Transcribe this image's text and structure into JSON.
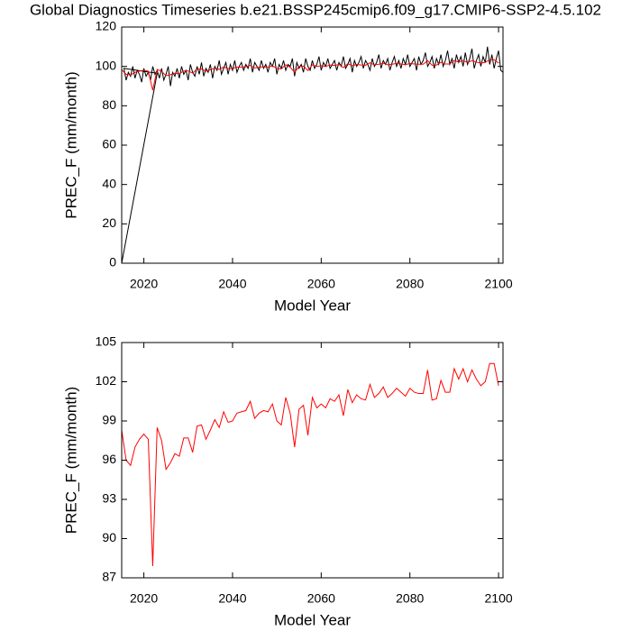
{
  "chart_data": [
    {
      "type": "line",
      "title": "Global Diagnostics Timeseries b.e21.BSSP245cmip6.f09_g17.CMIP6-SSP2-4.5.102",
      "xlabel": "Model Year",
      "ylabel": "PREC_F (mm/month)",
      "xlim": [
        2015,
        2101
      ],
      "ylim": [
        0,
        120
      ],
      "xticks": [
        2020,
        2040,
        2060,
        2080,
        2100
      ],
      "yticks": [
        0,
        20,
        40,
        60,
        80,
        100,
        120
      ],
      "series": [
        {
          "color": "#000000",
          "x": [
            2015,
            2023,
            2015.5,
            2016,
            2016.5,
            2017,
            2017.5,
            2018,
            2018.5,
            2019,
            2019.5,
            2020,
            2020.5,
            2021,
            2021.5,
            2022,
            2022.5,
            2023,
            2023.5,
            2024,
            2024.5,
            2025,
            2025.5,
            2026,
            2026.5,
            2027,
            2027.5,
            2028,
            2028.5,
            2029,
            2029.5,
            2030,
            2030.5,
            2031,
            2031.5,
            2032,
            2032.5,
            2033,
            2033.5,
            2034,
            2034.5,
            2035,
            2035.5,
            2036,
            2036.5,
            2037,
            2037.5,
            2038,
            2038.5,
            2039,
            2039.5,
            2040,
            2040.5,
            2041,
            2041.5,
            2042,
            2042.5,
            2043,
            2043.5,
            2044,
            2044.5,
            2045,
            2045.5,
            2046,
            2046.5,
            2047,
            2047.5,
            2048,
            2048.5,
            2049,
            2049.5,
            2050,
            2050.5,
            2051,
            2051.5,
            2052,
            2052.5,
            2053,
            2053.5,
            2054,
            2054.5,
            2055,
            2055.5,
            2056,
            2056.5,
            2057,
            2057.5,
            2058,
            2058.5,
            2059,
            2059.5,
            2060,
            2060.5,
            2061,
            2061.5,
            2062,
            2062.5,
            2063,
            2063.5,
            2064,
            2064.5,
            2065,
            2065.5,
            2066,
            2066.5,
            2067,
            2067.5,
            2068,
            2068.5,
            2069,
            2069.5,
            2070,
            2070.5,
            2071,
            2071.5,
            2072,
            2072.5,
            2073,
            2073.5,
            2074,
            2074.5,
            2075,
            2075.5,
            2076,
            2076.5,
            2077,
            2077.5,
            2078,
            2078.5,
            2079,
            2079.5,
            2080,
            2080.5,
            2081,
            2081.5,
            2082,
            2082.5,
            2083,
            2083.5,
            2084,
            2084.5,
            2085,
            2085.5,
            2086,
            2086.5,
            2087,
            2087.5,
            2088,
            2088.5,
            2089,
            2089.5,
            2090,
            2090.5,
            2091,
            2091.5,
            2092,
            2092.5,
            2093,
            2093.5,
            2094,
            2094.5,
            2095,
            2095.5,
            2096,
            2096.5,
            2097,
            2097.5,
            2098,
            2098.5,
            2099,
            2099.5,
            2100,
            2100.5,
            2101
          ],
          "values": [
            0,
            96.5,
            99,
            93,
            97,
            95,
            100,
            94,
            98,
            96,
            92,
            99,
            95,
            97,
            93,
            100,
            96,
            98,
            94,
            99,
            93,
            96,
            100,
            90,
            97,
            95,
            99,
            94,
            100,
            96,
            98,
            93,
            101,
            97,
            95,
            100,
            96,
            102,
            95,
            99,
            97,
            101,
            94,
            100,
            98,
            103,
            96,
            99,
            102,
            96,
            101,
            98,
            103,
            97,
            100,
            102,
            98,
            101,
            99,
            104,
            97,
            102,
            100,
            98,
            103,
            99,
            101,
            97,
            102,
            100,
            104,
            96,
            101,
            99,
            103,
            98,
            101,
            100,
            104,
            95,
            102,
            99,
            101,
            97,
            104,
            100,
            98,
            103,
            99,
            101,
            105,
            98,
            102,
            100,
            104,
            99,
            101,
            103,
            98,
            102,
            100,
            105,
            99,
            101,
            104,
            97,
            103,
            100,
            102,
            105,
            99,
            103,
            101,
            98,
            104,
            100,
            102,
            106,
            99,
            103,
            101,
            104,
            98,
            102,
            105,
            100,
            103,
            99,
            104,
            101,
            106,
            100,
            102,
            104,
            98,
            105,
            101,
            103,
            107,
            100,
            102,
            105,
            99,
            104,
            101,
            106,
            100,
            103,
            108,
            101,
            104,
            99,
            106,
            102,
            105,
            100,
            107,
            101,
            104,
            109,
            99,
            103,
            106,
            100,
            105,
            102,
            110,
            101,
            106,
            99,
            104,
            108,
            98,
            97
          ]
        },
        {
          "color": "#ff0000",
          "x": [
            2015,
            2016,
            2017,
            2018,
            2019,
            2020,
            2021,
            2022,
            2023,
            2024,
            2025,
            2026,
            2027,
            2028,
            2029,
            2030,
            2031,
            2032,
            2033,
            2034,
            2035,
            2036,
            2037,
            2038,
            2039,
            2040,
            2041,
            2042,
            2043,
            2044,
            2045,
            2046,
            2047,
            2048,
            2049,
            2050,
            2051,
            2052,
            2053,
            2054,
            2055,
            2056,
            2057,
            2058,
            2059,
            2060,
            2061,
            2062,
            2063,
            2064,
            2065,
            2066,
            2067,
            2068,
            2069,
            2070,
            2071,
            2072,
            2073,
            2074,
            2075,
            2076,
            2077,
            2078,
            2079,
            2080,
            2081,
            2082,
            2083,
            2084,
            2085,
            2086,
            2087,
            2088,
            2089,
            2090,
            2091,
            2092,
            2093,
            2094,
            2095,
            2096,
            2097,
            2098,
            2099,
            2100
          ],
          "values": [
            98.3,
            96.0,
            95.6,
            97.0,
            97.6,
            98.0,
            97.6,
            87.9,
            98.5,
            97.5,
            95.3,
            95.8,
            96.5,
            96.3,
            97.7,
            97.7,
            96.6,
            98.6,
            98.7,
            97.6,
            98.3,
            99.1,
            98.5,
            99.7,
            98.9,
            99.0,
            99.6,
            99.7,
            99.8,
            100.5,
            99.2,
            99.6,
            99.8,
            99.7,
            100.3,
            99.0,
            98.7,
            100.8,
            99.6,
            97.0,
            99.9,
            100.2,
            97.9,
            100.8,
            100.0,
            100.3,
            100.0,
            100.7,
            100.5,
            101.0,
            99.4,
            101.4,
            100.4,
            101.0,
            100.7,
            100.6,
            101.8,
            100.8,
            101.1,
            101.6,
            100.8,
            101.1,
            101.5,
            101.2,
            100.9,
            101.5,
            101.2,
            101.1,
            101.1,
            102.9,
            100.6,
            100.7,
            102.1,
            101.2,
            101.2,
            103.0,
            102.2,
            103.0,
            102.0,
            102.9,
            102.2,
            101.7,
            102.0,
            103.4,
            103.4,
            101.7
          ]
        }
      ]
    },
    {
      "type": "line",
      "xlabel": "Model Year",
      "ylabel": "PREC_F (mm/month)",
      "xlim": [
        2015,
        2101
      ],
      "ylim": [
        87,
        105
      ],
      "xticks": [
        2020,
        2040,
        2060,
        2080,
        2100
      ],
      "yticks": [
        87,
        90,
        93,
        96,
        99,
        102,
        105
      ],
      "series": [
        {
          "color": "#ff0000",
          "x": [
            2015,
            2016,
            2017,
            2018,
            2019,
            2020,
            2021,
            2022,
            2023,
            2024,
            2025,
            2026,
            2027,
            2028,
            2029,
            2030,
            2031,
            2032,
            2033,
            2034,
            2035,
            2036,
            2037,
            2038,
            2039,
            2040,
            2041,
            2042,
            2043,
            2044,
            2045,
            2046,
            2047,
            2048,
            2049,
            2050,
            2051,
            2052,
            2053,
            2054,
            2055,
            2056,
            2057,
            2058,
            2059,
            2060,
            2061,
            2062,
            2063,
            2064,
            2065,
            2066,
            2067,
            2068,
            2069,
            2070,
            2071,
            2072,
            2073,
            2074,
            2075,
            2076,
            2077,
            2078,
            2079,
            2080,
            2081,
            2082,
            2083,
            2084,
            2085,
            2086,
            2087,
            2088,
            2089,
            2090,
            2091,
            2092,
            2093,
            2094,
            2095,
            2096,
            2097,
            2098,
            2099,
            2100
          ],
          "values": [
            98.3,
            96.0,
            95.6,
            97.0,
            97.6,
            98.0,
            97.6,
            87.9,
            98.5,
            97.5,
            95.3,
            95.8,
            96.5,
            96.3,
            97.7,
            97.7,
            96.6,
            98.6,
            98.7,
            97.6,
            98.3,
            99.1,
            98.5,
            99.7,
            98.9,
            99.0,
            99.6,
            99.7,
            99.8,
            100.5,
            99.2,
            99.6,
            99.8,
            99.7,
            100.3,
            99.0,
            98.7,
            100.8,
            99.6,
            97.0,
            99.9,
            100.2,
            97.9,
            100.8,
            100.0,
            100.3,
            100.0,
            100.7,
            100.5,
            101.0,
            99.4,
            101.4,
            100.4,
            101.0,
            100.7,
            100.6,
            101.8,
            100.8,
            101.1,
            101.6,
            100.8,
            101.1,
            101.5,
            101.2,
            100.9,
            101.5,
            101.2,
            101.1,
            101.1,
            102.9,
            100.6,
            100.7,
            102.1,
            101.2,
            101.2,
            103.0,
            102.2,
            103.0,
            102.0,
            102.9,
            102.2,
            101.7,
            102.0,
            103.4,
            103.4,
            101.7
          ]
        }
      ]
    }
  ]
}
